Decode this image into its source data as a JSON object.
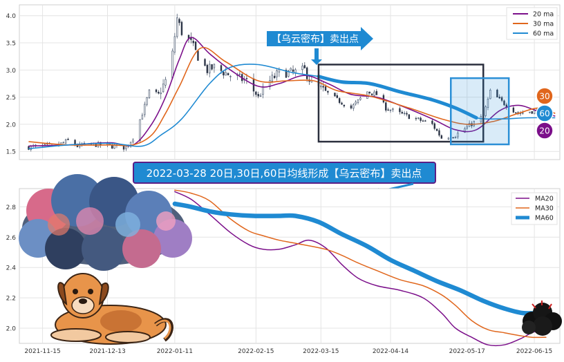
{
  "chart_data": [
    {
      "type": "candlestick",
      "title": "",
      "xlabel": "",
      "ylabel": "",
      "ylim": [
        1.35,
        4.2
      ],
      "y_ticks": [
        1.5,
        2.0,
        2.5,
        3.0,
        3.5,
        4.0
      ],
      "y_tick_labels": [
        "1.5",
        "2.0",
        "2.5",
        "3.0",
        "3.5",
        "4.0"
      ],
      "x_range": [
        "2021-11-05",
        "2022-06-26"
      ],
      "grid": true,
      "legend_position": "top-right",
      "price_anchors": [
        [
          "2021-11-09",
          1.58
        ],
        [
          "2021-11-22",
          1.62
        ],
        [
          "2021-11-26",
          1.7
        ],
        [
          "2021-11-30",
          1.6
        ],
        [
          "2021-12-07",
          1.63
        ],
        [
          "2021-12-14",
          1.6
        ],
        [
          "2021-12-21",
          1.57
        ],
        [
          "2021-12-24",
          1.75
        ],
        [
          "2021-12-28",
          2.2
        ],
        [
          "2021-12-31",
          2.6
        ],
        [
          "2022-01-04",
          2.55
        ],
        [
          "2022-01-07",
          2.8
        ],
        [
          "2022-01-10",
          3.3
        ],
        [
          "2022-01-12",
          3.95
        ],
        [
          "2022-01-14",
          3.7
        ],
        [
          "2022-01-18",
          3.5
        ],
        [
          "2022-01-21",
          3.25
        ],
        [
          "2022-01-25",
          3.0
        ],
        [
          "2022-01-28",
          3.05
        ],
        [
          "2022-02-04",
          2.9
        ],
        [
          "2022-02-11",
          2.8
        ],
        [
          "2022-02-16",
          2.5
        ],
        [
          "2022-02-21",
          2.8
        ],
        [
          "2022-02-25",
          2.95
        ],
        [
          "2022-03-03",
          2.95
        ],
        [
          "2022-03-08",
          3.0
        ],
        [
          "2022-03-11",
          2.75
        ],
        [
          "2022-03-17",
          2.6
        ],
        [
          "2022-03-22",
          2.45
        ],
        [
          "2022-03-28",
          2.3
        ],
        [
          "2022-04-04",
          2.6
        ],
        [
          "2022-04-08",
          2.55
        ],
        [
          "2022-04-12",
          2.3
        ],
        [
          "2022-04-18",
          2.2
        ],
        [
          "2022-04-25",
          2.1
        ],
        [
          "2022-05-02",
          2.0
        ],
        [
          "2022-05-06",
          1.75
        ],
        [
          "2022-05-12",
          1.8
        ],
        [
          "2022-05-17",
          1.95
        ],
        [
          "2022-05-24",
          2.15
        ],
        [
          "2022-05-27",
          2.6
        ],
        [
          "2022-05-31",
          2.45
        ],
        [
          "2022-06-03",
          2.35
        ],
        [
          "2022-06-08",
          2.2
        ],
        [
          "2022-06-15",
          2.25
        ],
        [
          "2022-06-22",
          2.2
        ]
      ],
      "series": [
        {
          "name": "20 ma",
          "color": "#7b0f8a",
          "points": [
            [
              "2021-11-09",
              1.6
            ],
            [
              "2021-11-26",
              1.62
            ],
            [
              "2021-12-14",
              1.66
            ],
            [
              "2021-12-24",
              1.62
            ],
            [
              "2022-01-01",
              2.0
            ],
            [
              "2022-01-07",
              2.5
            ],
            [
              "2022-01-13",
              3.2
            ],
            [
              "2022-01-18",
              3.6
            ],
            [
              "2022-01-26",
              3.3
            ],
            [
              "2022-02-04",
              3.0
            ],
            [
              "2022-02-16",
              2.7
            ],
            [
              "2022-02-25",
              2.75
            ],
            [
              "2022-03-08",
              2.9
            ],
            [
              "2022-03-18",
              2.75
            ],
            [
              "2022-03-28",
              2.55
            ],
            [
              "2022-04-08",
              2.5
            ],
            [
              "2022-04-18",
              2.35
            ],
            [
              "2022-05-02",
              2.1
            ],
            [
              "2022-05-12",
              1.9
            ],
            [
              "2022-05-21",
              1.9
            ],
            [
              "2022-05-31",
              2.25
            ],
            [
              "2022-06-08",
              2.35
            ],
            [
              "2022-06-16",
              2.25
            ],
            [
              "2022-06-24",
              2.15
            ]
          ]
        },
        {
          "name": "30 ma",
          "color": "#e0661c",
          "points": [
            [
              "2021-11-09",
              1.68
            ],
            [
              "2021-11-26",
              1.62
            ],
            [
              "2021-12-14",
              1.62
            ],
            [
              "2021-12-24",
              1.62
            ],
            [
              "2022-01-01",
              1.8
            ],
            [
              "2022-01-07",
              2.2
            ],
            [
              "2022-01-13",
              2.7
            ],
            [
              "2022-01-22",
              3.4
            ],
            [
              "2022-02-02",
              3.15
            ],
            [
              "2022-02-16",
              2.8
            ],
            [
              "2022-02-28",
              2.8
            ],
            [
              "2022-03-12",
              2.8
            ],
            [
              "2022-03-22",
              2.62
            ],
            [
              "2022-04-05",
              2.52
            ],
            [
              "2022-04-22",
              2.3
            ],
            [
              "2022-05-06",
              2.1
            ],
            [
              "2022-05-17",
              2.0
            ],
            [
              "2022-05-28",
              2.05
            ],
            [
              "2022-06-08",
              2.2
            ],
            [
              "2022-06-17",
              2.3
            ],
            [
              "2022-06-24",
              2.2
            ]
          ]
        },
        {
          "name": "60 ma",
          "color": "#1f8ad2",
          "points": [
            [
              "2021-11-09",
              1.55
            ],
            [
              "2021-11-26",
              1.62
            ],
            [
              "2021-12-14",
              1.65
            ],
            [
              "2021-12-28",
              1.6
            ],
            [
              "2022-01-05",
              1.8
            ],
            [
              "2022-01-14",
              2.1
            ],
            [
              "2022-01-26",
              2.75
            ],
            [
              "2022-02-04",
              3.05
            ],
            [
              "2022-02-16",
              3.1
            ],
            [
              "2022-03-03",
              2.95
            ],
            [
              "2022-03-14",
              2.88
            ],
            [
              "2022-03-24",
              2.78
            ],
            [
              "2022-04-05",
              2.75
            ],
            [
              "2022-04-18",
              2.6
            ],
            [
              "2022-05-02",
              2.45
            ],
            [
              "2022-05-12",
              2.3
            ],
            [
              "2022-05-21",
              2.12
            ],
            [
              "2022-06-01",
              2.1
            ],
            [
              "2022-06-12",
              2.12
            ],
            [
              "2022-06-24",
              2.12
            ]
          ]
        }
      ],
      "markers": [
        {
          "label": "30",
          "color": "#e0661c"
        },
        {
          "label": "60",
          "color": "#1f8ad2"
        },
        {
          "label": "20",
          "color": "#7b0f8a"
        }
      ],
      "annotations": {
        "signal_label": "【乌云密布】卖出点",
        "banner_text": "2022-03-28 20日,30日,60日均线形成【乌云密布】卖出点",
        "signal_date": "2022-03-28",
        "boxes": [
          {
            "from": "2022-03-14",
            "to": "2022-05-24",
            "y_top": 3.1,
            "y_bottom": 1.68,
            "color": "#2b2f3e"
          },
          {
            "from": "2022-05-10",
            "to": "2022-06-04",
            "y_top": 2.85,
            "y_bottom": 1.63,
            "color": "#2b8fd6"
          }
        ]
      }
    },
    {
      "type": "line",
      "title": "",
      "xlabel": "",
      "ylabel": "",
      "ylim": [
        1.9,
        2.92
      ],
      "y_ticks": [
        2.0,
        2.2,
        2.4,
        2.6,
        2.8
      ],
      "y_tick_labels": [
        "2.0",
        "2.2",
        "2.4",
        "2.6",
        "2.8"
      ],
      "x_range": [
        "2021-11-05",
        "2022-06-26"
      ],
      "x_ticks": [
        "2021-11-15",
        "2021-12-13",
        "2022-01-11",
        "2022-02-15",
        "2022-03-15",
        "2022-04-14",
        "2022-05-17",
        "2022-06-15"
      ],
      "grid": true,
      "legend_position": "top-right",
      "series": [
        {
          "name": "MA20",
          "color": "#7b0f8a",
          "points": [
            [
              "2022-01-11",
              2.9
            ],
            [
              "2022-01-18",
              2.85
            ],
            [
              "2022-01-26",
              2.75
            ],
            [
              "2022-02-04",
              2.63
            ],
            [
              "2022-02-12",
              2.55
            ],
            [
              "2022-02-18",
              2.52
            ],
            [
              "2022-02-25",
              2.52
            ],
            [
              "2022-03-04",
              2.55
            ],
            [
              "2022-03-10",
              2.58
            ],
            [
              "2022-03-17",
              2.53
            ],
            [
              "2022-03-24",
              2.42
            ],
            [
              "2022-03-31",
              2.33
            ],
            [
              "2022-04-08",
              2.28
            ],
            [
              "2022-04-18",
              2.25
            ],
            [
              "2022-04-28",
              2.2
            ],
            [
              "2022-05-06",
              2.1
            ],
            [
              "2022-05-12",
              2.0
            ],
            [
              "2022-05-19",
              1.94
            ],
            [
              "2022-05-26",
              1.89
            ],
            [
              "2022-06-02",
              1.89
            ],
            [
              "2022-06-09",
              1.93
            ],
            [
              "2022-06-14",
              1.97
            ],
            [
              "2022-06-20",
              2.0
            ]
          ]
        },
        {
          "name": "MA30",
          "color": "#e0661c",
          "points": [
            [
              "2022-01-11",
              2.91
            ],
            [
              "2022-01-18",
              2.89
            ],
            [
              "2022-01-26",
              2.84
            ],
            [
              "2022-02-04",
              2.72
            ],
            [
              "2022-02-12",
              2.64
            ],
            [
              "2022-02-18",
              2.61
            ],
            [
              "2022-02-25",
              2.58
            ],
            [
              "2022-03-04",
              2.56
            ],
            [
              "2022-03-17",
              2.52
            ],
            [
              "2022-03-24",
              2.48
            ],
            [
              "2022-03-31",
              2.43
            ],
            [
              "2022-04-08",
              2.38
            ],
            [
              "2022-04-18",
              2.32
            ],
            [
              "2022-04-28",
              2.28
            ],
            [
              "2022-05-06",
              2.22
            ],
            [
              "2022-05-12",
              2.15
            ],
            [
              "2022-05-19",
              2.05
            ],
            [
              "2022-05-26",
              1.99
            ],
            [
              "2022-06-02",
              1.97
            ],
            [
              "2022-06-09",
              1.95
            ],
            [
              "2022-06-14",
              1.94
            ],
            [
              "2022-06-20",
              1.94
            ]
          ]
        },
        {
          "name": "MA60",
          "color": "#1f8ad2",
          "points": [
            [
              "2022-01-11",
              2.82
            ],
            [
              "2022-01-18",
              2.8
            ],
            [
              "2022-01-26",
              2.77
            ],
            [
              "2022-02-04",
              2.75
            ],
            [
              "2022-02-14",
              2.74
            ],
            [
              "2022-02-25",
              2.74
            ],
            [
              "2022-03-04",
              2.74
            ],
            [
              "2022-03-14",
              2.7
            ],
            [
              "2022-03-24",
              2.62
            ],
            [
              "2022-04-04",
              2.54
            ],
            [
              "2022-04-14",
              2.45
            ],
            [
              "2022-04-24",
              2.38
            ],
            [
              "2022-05-04",
              2.31
            ],
            [
              "2022-05-14",
              2.25
            ],
            [
              "2022-05-24",
              2.18
            ],
            [
              "2022-06-02",
              2.13
            ],
            [
              "2022-06-10",
              2.1
            ],
            [
              "2022-06-18",
              2.1
            ]
          ]
        }
      ]
    }
  ]
}
